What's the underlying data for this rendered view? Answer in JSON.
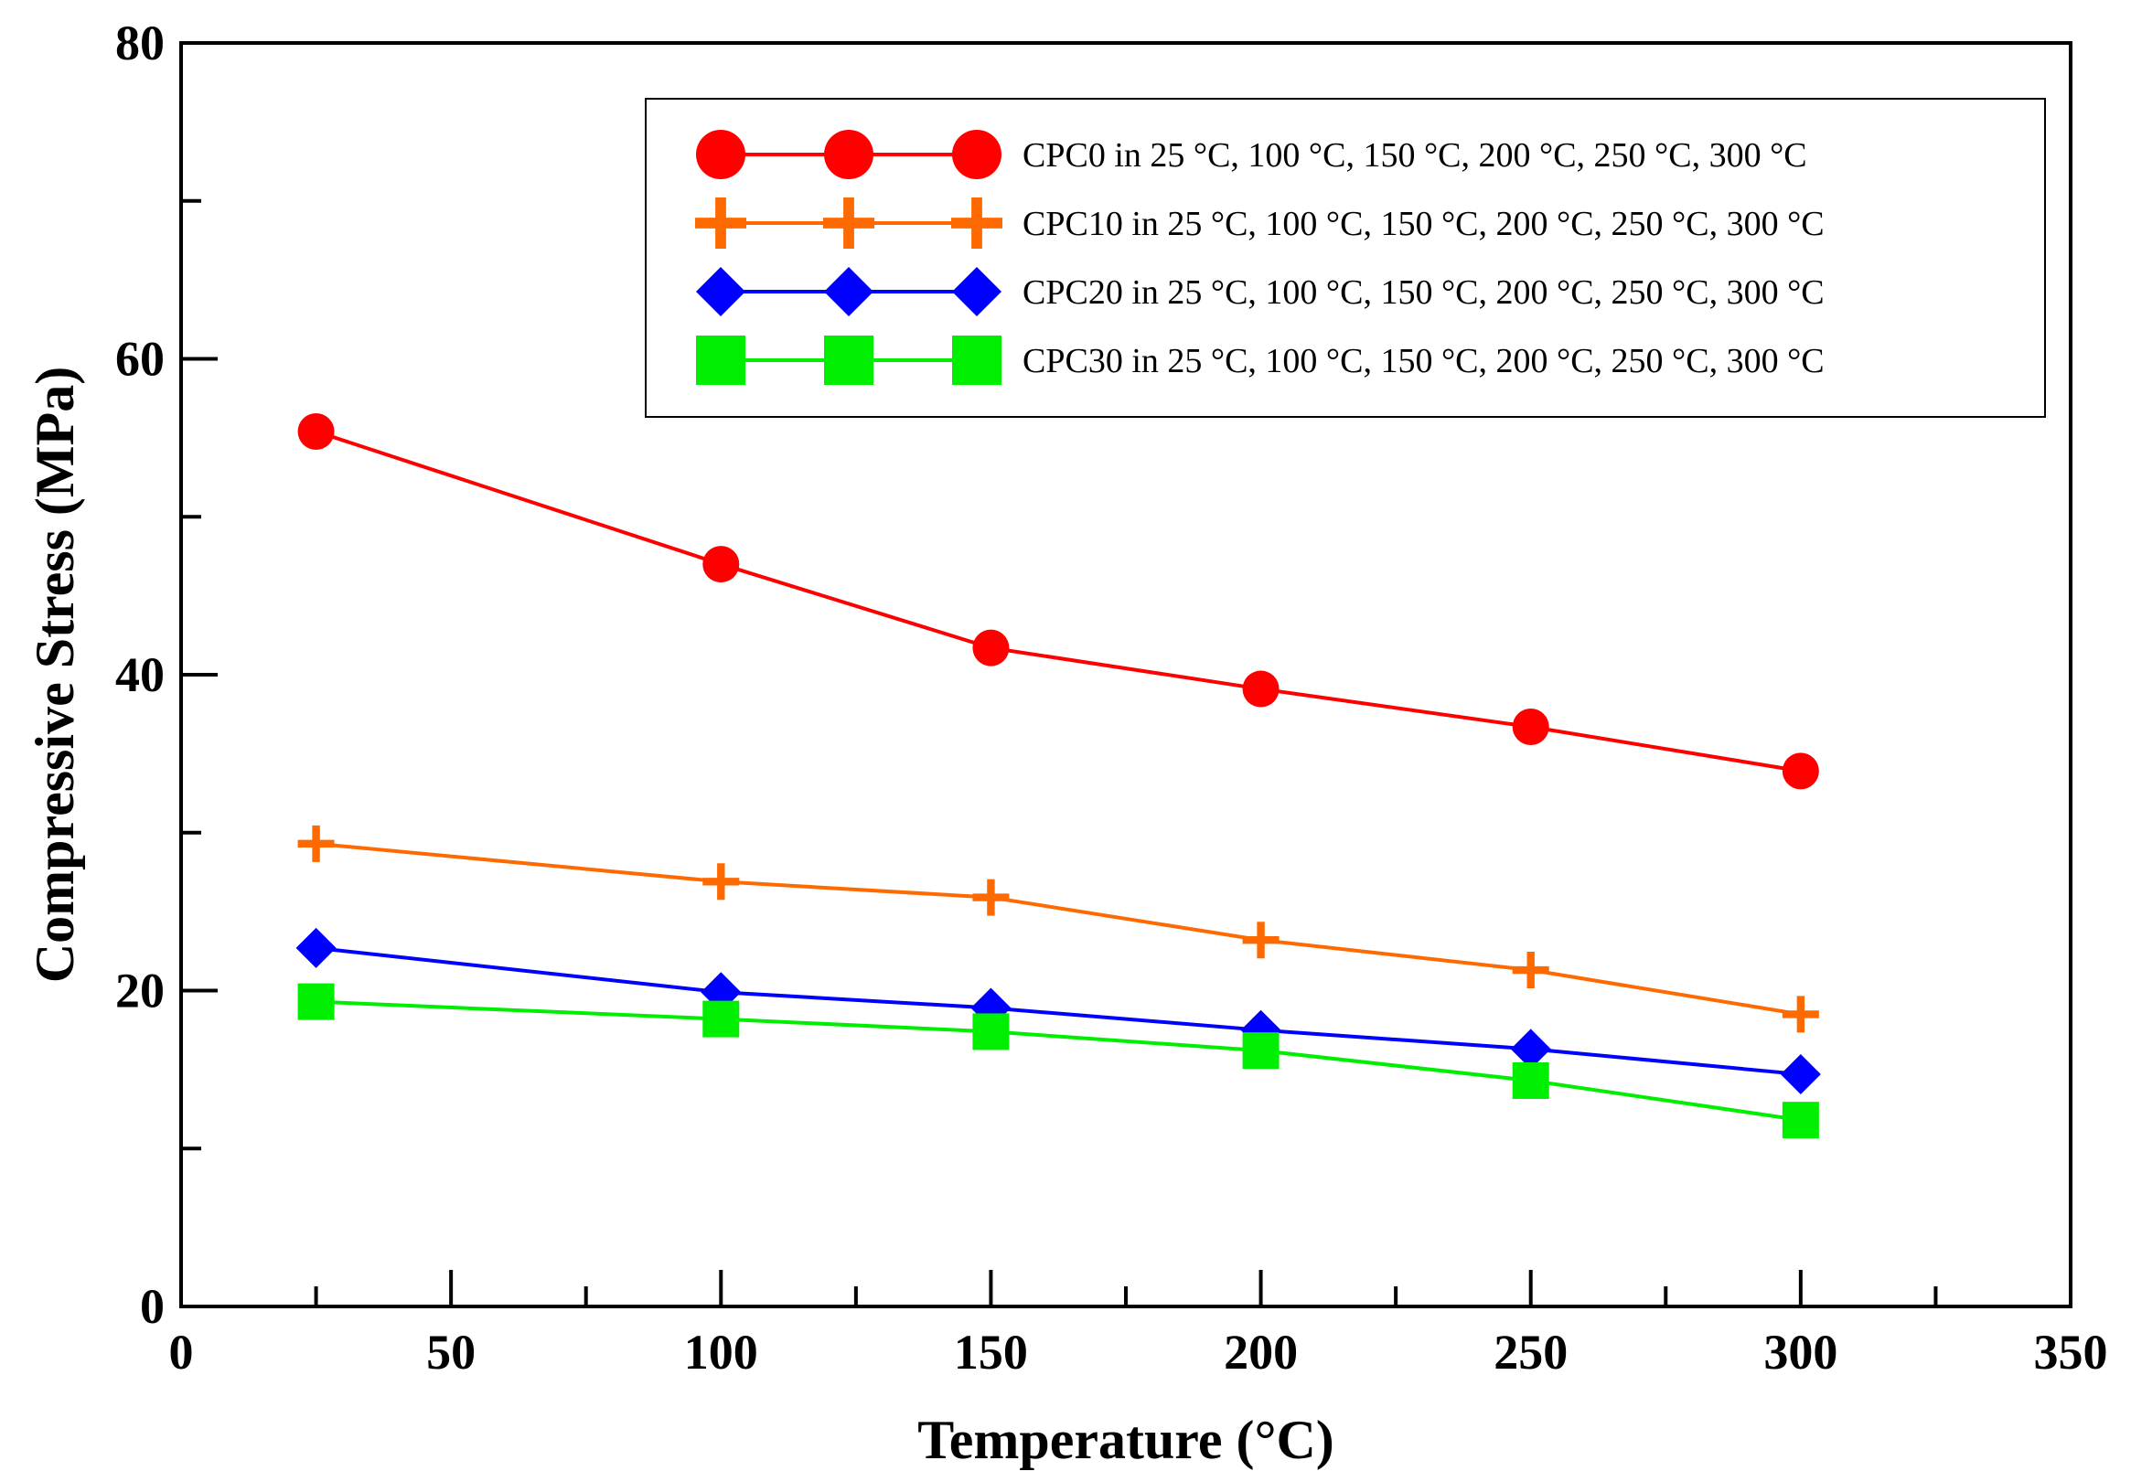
{
  "chart_data": {
    "type": "line",
    "title": "",
    "xlabel": "Temperature (°C)",
    "ylabel": "Compressive Stress (MPa)",
    "xlim": [
      0,
      350
    ],
    "ylim": [
      0,
      80
    ],
    "xticks": [
      0,
      50,
      100,
      150,
      200,
      250,
      300,
      350
    ],
    "xtick_labels": [
      "0",
      "50",
      "100",
      "150",
      "200",
      "250",
      "300",
      "350"
    ],
    "yticks": [
      0,
      20,
      40,
      60,
      80
    ],
    "ytick_labels": [
      "0",
      "20",
      "40",
      "60",
      "80"
    ],
    "x_minor_step": 25,
    "y_minor_step": 10,
    "grid": false,
    "legend_position": "top-right",
    "x": [
      25,
      100,
      150,
      200,
      250,
      300
    ],
    "series": [
      {
        "name": "CPC0 in 25 °C, 100 °C, 150 °C, 200 °C, 250 °C, 300 °C",
        "key": "cpc0",
        "color": "#ff0000",
        "marker": "circle",
        "values": [
          55.4,
          47.0,
          41.7,
          39.1,
          36.7,
          33.9
        ]
      },
      {
        "name": "CPC10 in 25 °C, 100 °C, 150 °C, 200 °C, 250 °C, 300 °C",
        "key": "cpc10",
        "color": "#ff6a00",
        "marker": "plus",
        "values": [
          29.3,
          26.9,
          25.9,
          23.2,
          21.3,
          18.5
        ]
      },
      {
        "name": "CPC20 in 25 °C, 100 °C, 150 °C, 200 °C, 250 °C, 300 °C",
        "key": "cpc20",
        "color": "#0000ff",
        "marker": "diamond",
        "values": [
          22.7,
          19.9,
          18.9,
          17.5,
          16.3,
          14.7
        ]
      },
      {
        "name": "CPC30 in 25 °C, 100 °C, 150 °C, 200 °C, 250 °C, 300 °C",
        "key": "cpc30",
        "color": "#00ee00",
        "marker": "square",
        "values": [
          19.3,
          18.2,
          17.4,
          16.2,
          14.3,
          11.8
        ]
      }
    ]
  }
}
